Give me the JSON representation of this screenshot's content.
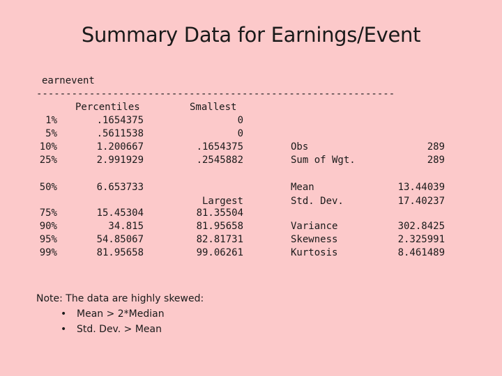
{
  "title": "Summary Data for Earnings/Event",
  "variable": "earnevent",
  "divider": "-------------------------------------------------------------",
  "headers": {
    "percentiles": "Percentiles",
    "smallest": "Smallest",
    "largest": "Largest"
  },
  "pct_labels": [
    "1%",
    "5%",
    "10%",
    "25%",
    "50%",
    "75%",
    "90%",
    "95%",
    "99%"
  ],
  "percentiles": [
    ".1654375",
    ".5611538",
    "1.200667",
    "2.991929",
    "6.653733",
    "15.45304",
    "34.815",
    "54.85067",
    "81.95658"
  ],
  "smallest": [
    "0",
    "0",
    ".1654375",
    ".2545882"
  ],
  "largest": [
    "81.35504",
    "81.95658",
    "82.81731",
    "99.06261"
  ],
  "stats": [
    {
      "label": "Obs",
      "value": "289"
    },
    {
      "label": "Sum of Wgt.",
      "value": "289"
    },
    {
      "label": "Mean",
      "value": "13.44039"
    },
    {
      "label": "Std. Dev.",
      "value": "17.40237"
    },
    {
      "label": "Variance",
      "value": "302.8425"
    },
    {
      "label": "Skewness",
      "value": "2.325991"
    },
    {
      "label": "Kurtosis",
      "value": "8.461489"
    }
  ],
  "note": {
    "heading": "Note: The data are highly skewed:",
    "bullet": "•",
    "items": [
      "Mean > 2*Median",
      "Std. Dev. > Mean"
    ]
  }
}
